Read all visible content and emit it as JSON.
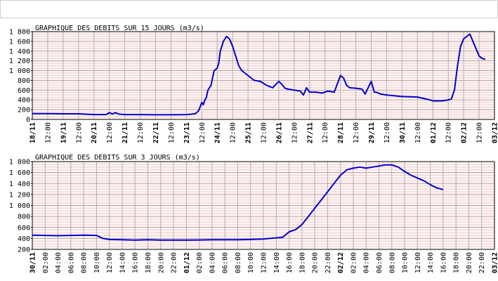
{
  "chart_data": [
    {
      "type": "line",
      "title": "GRAPHIQUE DES DEBITS SUR 15 JOURS (m3/s)",
      "xlabel": "",
      "ylabel": "",
      "ylim": [
        0,
        1800
      ],
      "grid": true,
      "yticks": [
        "0",
        "200",
        "400",
        "600",
        "800",
        "1 000",
        "1 200",
        "1 400",
        "1 600",
        "1 800"
      ],
      "ytick_values": [
        0,
        200,
        400,
        600,
        800,
        1000,
        1200,
        1400,
        1600,
        1800
      ],
      "xlim": [
        0,
        15
      ],
      "xticks": [
        "18/11",
        "12:00",
        "19/11",
        "12:00",
        "20/11",
        "12:00",
        "21/11",
        "12:00",
        "22/11",
        "12:00",
        "23/11",
        "12:00",
        "24/11",
        "12:00",
        "25/11",
        "12:00",
        "26/11",
        "12:00",
        "27/11",
        "12:00",
        "28/11",
        "12:00",
        "29/11",
        "12:00",
        "30/11",
        "12:00",
        "01/12",
        "12:00",
        "02/12",
        "12:00",
        "03/12"
      ],
      "xtick_values": [
        0,
        0.5,
        1,
        1.5,
        2,
        2.5,
        3,
        3.5,
        4,
        4.5,
        5,
        5.5,
        6,
        6.5,
        7,
        7.5,
        8,
        8.5,
        9,
        9.5,
        10,
        10.5,
        11,
        11.5,
        12,
        12.5,
        13,
        13.5,
        14,
        14.5,
        15
      ],
      "series": [
        {
          "color": "#0000cc",
          "x": [
            0,
            0.5,
            1,
            1.5,
            2,
            2.4,
            2.5,
            2.6,
            2.7,
            2.8,
            3,
            3.5,
            4,
            4.5,
            5,
            5.2,
            5.3,
            5.4,
            5.5,
            5.55,
            5.6,
            5.65,
            5.7,
            5.8,
            5.9,
            6,
            6.05,
            6.1,
            6.2,
            6.3,
            6.4,
            6.5,
            6.6,
            6.7,
            6.8,
            7,
            7.2,
            7.4,
            7.6,
            7.8,
            8,
            8.1,
            8.2,
            8.3,
            8.5,
            8.7,
            8.8,
            8.9,
            9,
            9.2,
            9.4,
            9.6,
            9.8,
            10,
            10.1,
            10.2,
            10.3,
            10.5,
            10.7,
            10.8,
            10.9,
            11,
            11.1,
            11.2,
            11.3,
            11.5,
            12,
            12.5,
            12.7,
            12.9,
            13,
            13.3,
            13.5,
            13.6,
            13.7,
            13.8,
            13.9,
            14,
            14.1,
            14.2,
            14.3,
            14.4,
            14.5,
            14.6,
            14.7
          ],
          "y": [
            120,
            118,
            115,
            115,
            100,
            100,
            140,
            110,
            140,
            110,
            100,
            100,
            95,
            95,
            100,
            110,
            120,
            180,
            350,
            300,
            400,
            450,
            600,
            700,
            1000,
            1050,
            1150,
            1400,
            1600,
            1700,
            1650,
            1500,
            1300,
            1100,
            1000,
            900,
            800,
            780,
            700,
            650,
            780,
            720,
            640,
            620,
            600,
            580,
            500,
            650,
            560,
            560,
            540,
            580,
            560,
            900,
            850,
            700,
            650,
            640,
            620,
            520,
            650,
            780,
            560,
            550,
            520,
            500,
            470,
            460,
            430,
            400,
            380,
            380,
            400,
            420,
            600,
            1100,
            1500,
            1650,
            1700,
            1750,
            1600,
            1450,
            1300,
            1250,
            1230
          ]
        }
      ]
    },
    {
      "type": "line",
      "title": "GRAPHIQUE DES DEBITS SUR 3 JOURS (m3/s)",
      "xlabel": "",
      "ylabel": "",
      "ylim": [
        200,
        1800
      ],
      "grid": true,
      "yticks": [
        "200",
        "400",
        "600",
        "800",
        "1 000",
        "1 200",
        "1 400",
        "1 600",
        "1 800"
      ],
      "ytick_values": [
        200,
        400,
        600,
        800,
        1000,
        1200,
        1400,
        1600,
        1800
      ],
      "xlim": [
        0,
        72
      ],
      "xticks": [
        "30/11",
        "02:00",
        "04:00",
        "06:00",
        "08:00",
        "10:00",
        "12:00",
        "14:00",
        "16:00",
        "18:00",
        "20:00",
        "22:00",
        "01/12",
        "02:00",
        "04:00",
        "06:00",
        "08:00",
        "10:00",
        "12:00",
        "14:00",
        "16:00",
        "18:00",
        "20:00",
        "22:00",
        "02/12",
        "02:00",
        "04:00",
        "06:00",
        "08:00",
        "10:00",
        "12:00",
        "14:00",
        "16:00",
        "18:00",
        "20:00",
        "22:00",
        "03/12"
      ],
      "xtick_values": [
        0,
        2,
        4,
        6,
        8,
        10,
        12,
        14,
        16,
        18,
        20,
        22,
        24,
        26,
        28,
        30,
        32,
        34,
        36,
        38,
        40,
        42,
        44,
        46,
        48,
        50,
        52,
        54,
        56,
        58,
        60,
        62,
        64,
        66,
        68,
        70,
        72
      ],
      "bold_ticks": [
        "30/11",
        "01/12",
        "02/12",
        "03/12"
      ],
      "series": [
        {
          "color": "#0000cc",
          "x": [
            0,
            2,
            4,
            6,
            8,
            10,
            11,
            12,
            14,
            16,
            18,
            20,
            22,
            24,
            26,
            28,
            30,
            32,
            34,
            36,
            37,
            38,
            39,
            40,
            41,
            42,
            43,
            44,
            45,
            46,
            47,
            48,
            49,
            50,
            51,
            52,
            53,
            54,
            55,
            56,
            57,
            58,
            59,
            60,
            61,
            62,
            63,
            64
          ],
          "y": [
            460,
            455,
            450,
            455,
            460,
            455,
            400,
            380,
            375,
            370,
            375,
            370,
            370,
            370,
            372,
            375,
            375,
            375,
            380,
            390,
            400,
            410,
            420,
            520,
            560,
            650,
            800,
            950,
            1100,
            1250,
            1400,
            1550,
            1650,
            1680,
            1700,
            1680,
            1700,
            1720,
            1740,
            1740,
            1700,
            1620,
            1550,
            1500,
            1450,
            1380,
            1320,
            1290
          ]
        }
      ]
    }
  ]
}
